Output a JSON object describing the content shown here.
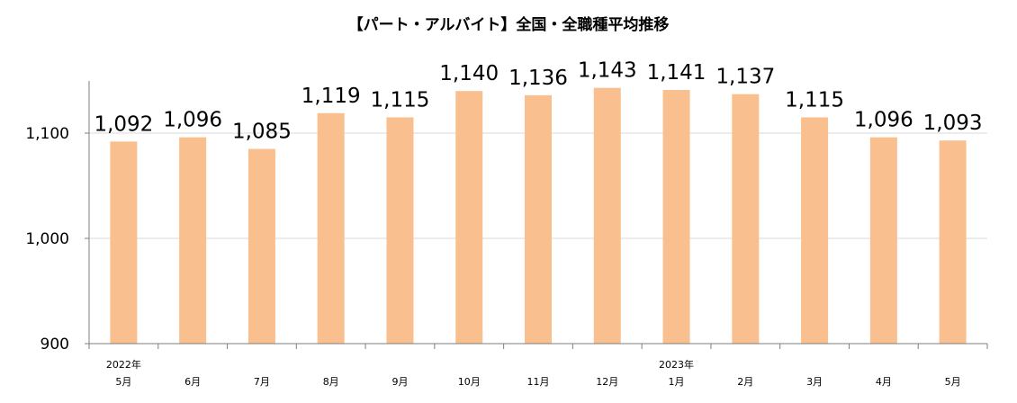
{
  "chart_data": {
    "type": "bar",
    "title": "【パート・アルバイト】全国・全職種平均推移",
    "xlabel": "",
    "ylabel": "",
    "ylim": [
      900,
      1150
    ],
    "yticks": [
      "900",
      "1,000",
      "1,100"
    ],
    "ytick_values": [
      900,
      1000,
      1100
    ],
    "grid": true,
    "legend": "none",
    "bar_color": "#F9BF8F",
    "categories": [
      {
        "year": "2022年",
        "month": "5月"
      },
      {
        "year": "",
        "month": "6月"
      },
      {
        "year": "",
        "month": "7月"
      },
      {
        "year": "",
        "month": "8月"
      },
      {
        "year": "",
        "month": "9月"
      },
      {
        "year": "",
        "month": "10月"
      },
      {
        "year": "",
        "month": "11月"
      },
      {
        "year": "",
        "month": "12月"
      },
      {
        "year": "2023年",
        "month": "1月"
      },
      {
        "year": "",
        "month": "2月"
      },
      {
        "year": "",
        "month": "3月"
      },
      {
        "year": "",
        "month": "4月"
      },
      {
        "year": "",
        "month": "5月"
      }
    ],
    "values": [
      1092,
      1096,
      1085,
      1119,
      1115,
      1140,
      1136,
      1143,
      1141,
      1137,
      1115,
      1096,
      1093
    ],
    "value_labels": [
      "1,092",
      "1,096",
      "1,085",
      "1,119",
      "1,115",
      "1,140",
      "1,136",
      "1,143",
      "1,141",
      "1,137",
      "1,115",
      "1,096",
      "1,093"
    ]
  }
}
